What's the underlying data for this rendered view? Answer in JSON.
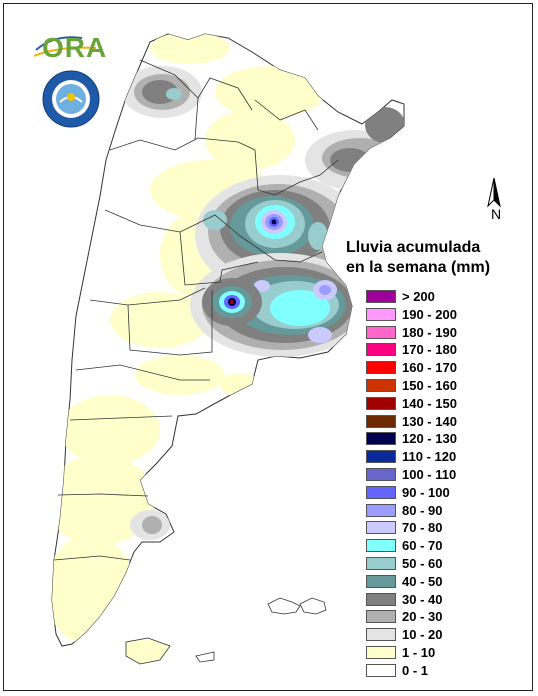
{
  "logo": {
    "text": "ORA"
  },
  "north_arrow": {
    "label": "N"
  },
  "legend": {
    "title_line1": "Lluvia acumulada",
    "title_line2": "en la semana (mm)",
    "items": [
      {
        "label": "> 200",
        "color": "#a0009a"
      },
      {
        "label": "190 - 200",
        "color": "#ff99ff"
      },
      {
        "label": "180 - 190",
        "color": "#ff66cc"
      },
      {
        "label": "170 - 180",
        "color": "#ff0080"
      },
      {
        "label": "160 - 170",
        "color": "#ff0000"
      },
      {
        "label": "150 - 160",
        "color": "#cc3300"
      },
      {
        "label": "140 - 150",
        "color": "#a00000"
      },
      {
        "label": "130 - 140",
        "color": "#6b2a00"
      },
      {
        "label": "120 - 130",
        "color": "#000050"
      },
      {
        "label": "110 - 120",
        "color": "#0a2a9a"
      },
      {
        "label": "100 - 110",
        "color": "#6666cc"
      },
      {
        "label": "90 - 100",
        "color": "#6464ff"
      },
      {
        "label": "80 - 90",
        "color": "#9c9cff"
      },
      {
        "label": "70 - 80",
        "color": "#cacaff"
      },
      {
        "label": "60 - 70",
        "color": "#80ffff"
      },
      {
        "label": "50 - 60",
        "color": "#99cccc"
      },
      {
        "label": "40 - 50",
        "color": "#669999"
      },
      {
        "label": "30 - 40",
        "color": "#808080"
      },
      {
        "label": "20 - 30",
        "color": "#b0b0b0"
      },
      {
        "label": "10 - 20",
        "color": "#e4e4e4"
      },
      {
        "label": "1 - 10",
        "color": "#ffffcc"
      },
      {
        "label": "0 - 1",
        "color": "#ffffff"
      }
    ]
  }
}
